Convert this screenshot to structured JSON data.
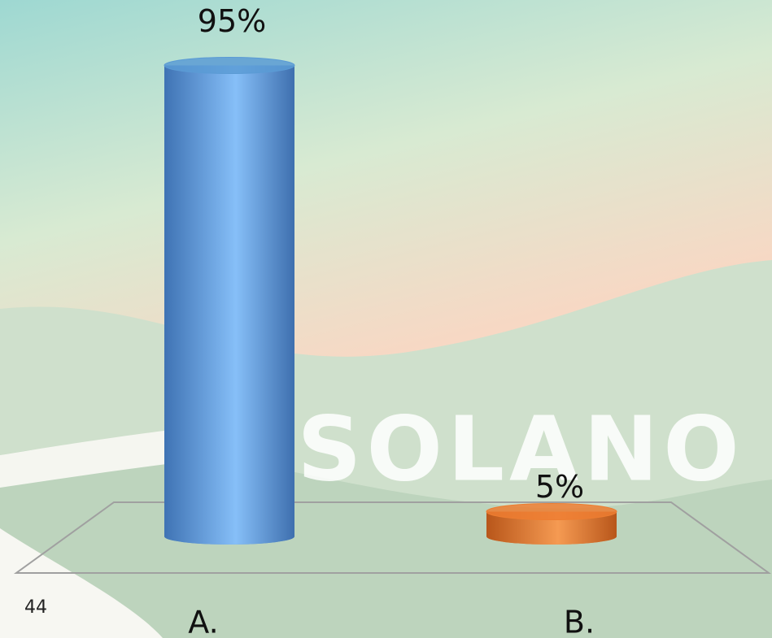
{
  "chart_data": {
    "type": "bar",
    "categories": [
      "A.",
      "B."
    ],
    "values": [
      95,
      5
    ],
    "value_labels": [
      "95%",
      "5%"
    ],
    "colors": [
      "#5b9bd5",
      "#ed7d31"
    ]
  },
  "background_text": "SOLANO",
  "slide_number": "44"
}
